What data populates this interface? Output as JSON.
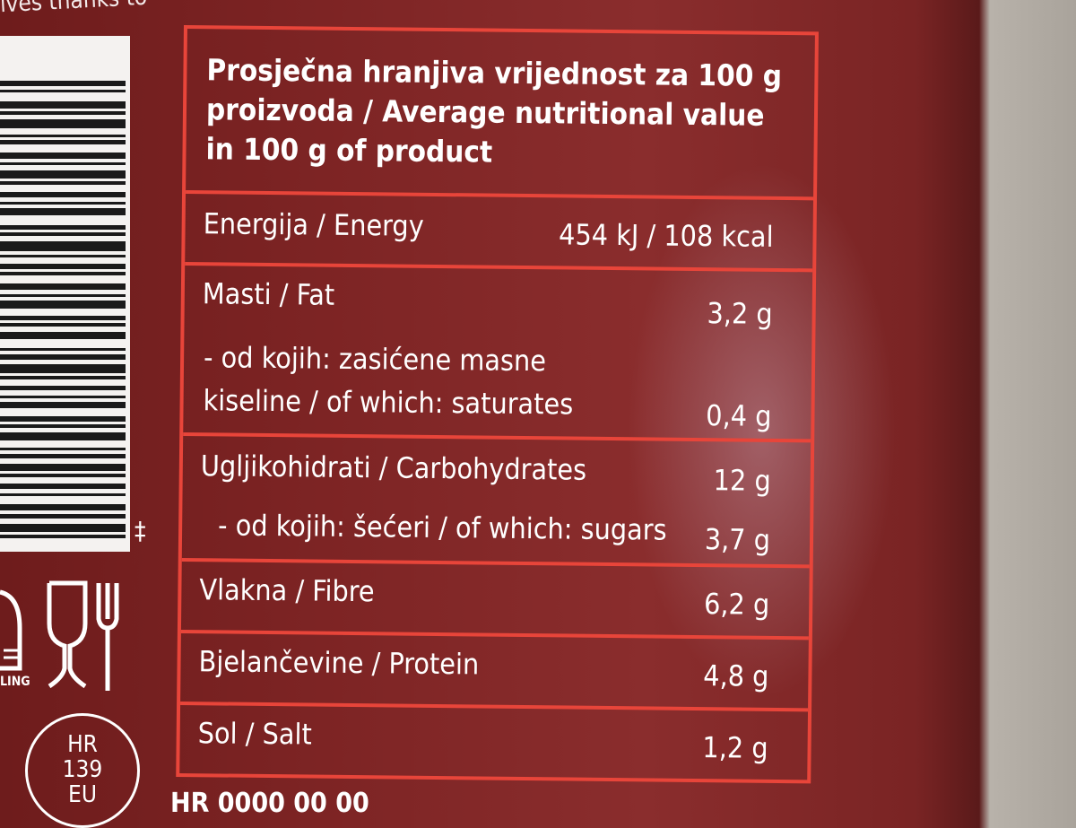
{
  "top_text": "ives thanks to",
  "panel": {
    "heading": "Prosječna hranjiva vrijednost za 100 g proizvoda / Average nutritional value in 100 g of product",
    "rows": [
      {
        "label": "Energija / Energy",
        "value": "454 kJ / 108 kcal"
      },
      {
        "label": "Masti / Fat",
        "value": "3,2 g"
      },
      {
        "label": "- od kojih: zasićene masne kiseline / of which: saturates",
        "value": "0,4 g"
      },
      {
        "label": "Ugljikohidrati / Carbohydrates",
        "value": "12 g"
      },
      {
        "label": "- od kojih: šećeri / of which: sugars",
        "value": "3,7 g"
      },
      {
        "label": "Vlakna / Fibre",
        "value": "6,2 g"
      },
      {
        "label": "Bjelančevine / Protein",
        "value": "4,8 g"
      },
      {
        "label": "Sol / Salt",
        "value": "1,2 g"
      }
    ]
  },
  "icons": {
    "food_safe": "glass-fork-icon",
    "recycling": "recycling-icon",
    "recycling_text": "LING"
  },
  "health_mark": {
    "line1": "HR",
    "line2": "139",
    "line3": "EU"
  },
  "bottom_text": "HR 0000 00 00",
  "colors": {
    "background": "#7d2424",
    "border": "#e8453a",
    "text": "#ffffff"
  }
}
